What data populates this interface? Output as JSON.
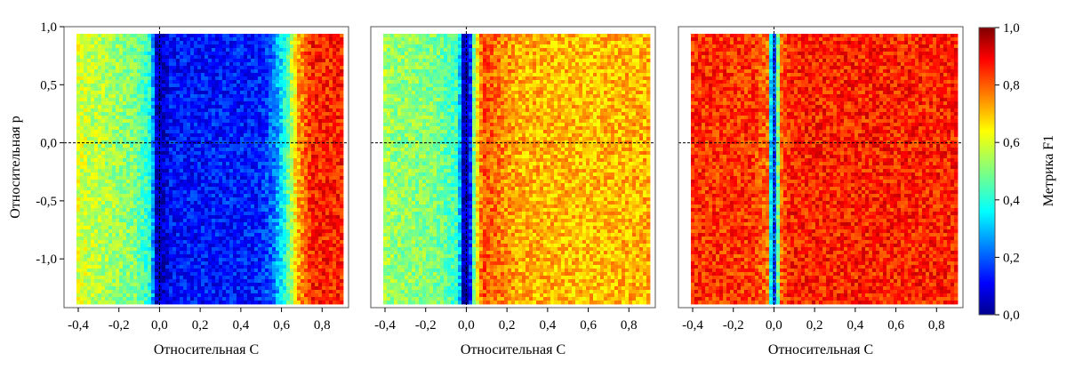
{
  "chart_data": {
    "type": "heatmap",
    "panels": [
      {
        "name": "panel-1",
        "xlabel": "Относительная C",
        "ylabel": "Относительная p",
        "xlim": [
          -0.47,
          0.93
        ],
        "ylim": [
          -1.42,
          1.0
        ],
        "xticks": [
          -0.4,
          -0.2,
          0.0,
          0.2,
          0.4,
          0.6,
          0.8
        ],
        "xtick_labels": [
          "-0,4",
          "-0,2",
          "0,0",
          "0,2",
          "0,4",
          "0,6",
          "0,8"
        ],
        "yticks": [
          1.0,
          0.5,
          0.0,
          -0.5,
          -1.0
        ],
        "ytick_labels": [
          "1,0",
          "0,5",
          "0,0",
          "-0,5",
          "-1,0"
        ],
        "x_profile": [
          [
            -0.47,
            0.62
          ],
          [
            -0.3,
            0.56
          ],
          [
            -0.12,
            0.5
          ],
          [
            -0.04,
            0.38
          ],
          [
            -0.02,
            0.05
          ],
          [
            0.02,
            0.05
          ],
          [
            0.05,
            0.12
          ],
          [
            0.5,
            0.14
          ],
          [
            0.56,
            0.22
          ],
          [
            0.62,
            0.4
          ],
          [
            0.68,
            0.72
          ],
          [
            0.75,
            0.86
          ],
          [
            0.93,
            0.86
          ]
        ]
      },
      {
        "name": "panel-2",
        "xlabel": "Относительная C",
        "ylabel": "",
        "xlim": [
          -0.47,
          0.93
        ],
        "ylim": [
          -1.42,
          1.0
        ],
        "xticks": [
          -0.4,
          -0.2,
          0.0,
          0.2,
          0.4,
          0.6,
          0.8
        ],
        "xtick_labels": [
          "-0,4",
          "-0,2",
          "0,0",
          "0,2",
          "0,4",
          "0,6",
          "0,8"
        ],
        "yticks": [],
        "ytick_labels": [],
        "x_profile": [
          [
            -0.47,
            0.58
          ],
          [
            -0.35,
            0.52
          ],
          [
            -0.15,
            0.5
          ],
          [
            -0.04,
            0.42
          ],
          [
            -0.015,
            0.05
          ],
          [
            0.015,
            0.05
          ],
          [
            0.04,
            0.55
          ],
          [
            0.08,
            0.82
          ],
          [
            0.25,
            0.72
          ],
          [
            0.6,
            0.7
          ],
          [
            0.93,
            0.72
          ]
        ]
      },
      {
        "name": "panel-3",
        "xlabel": "Относительная C",
        "ylabel": "",
        "xlim": [
          -0.47,
          0.93
        ],
        "ylim": [
          -1.42,
          1.0
        ],
        "xticks": [
          -0.4,
          -0.2,
          0.0,
          0.2,
          0.4,
          0.6,
          0.8
        ],
        "xtick_labels": [
          "-0,4",
          "-0,2",
          "0,0",
          "0,2",
          "0,4",
          "0,6",
          "0,8"
        ],
        "yticks": [],
        "ytick_labels": [],
        "x_profile": [
          [
            -0.47,
            0.85
          ],
          [
            -0.1,
            0.84
          ],
          [
            -0.03,
            0.78
          ],
          [
            -0.01,
            0.2
          ],
          [
            0.01,
            0.2
          ],
          [
            0.03,
            0.78
          ],
          [
            0.08,
            0.86
          ],
          [
            0.93,
            0.86
          ]
        ]
      }
    ],
    "colorbar": {
      "label": "Метрика F1",
      "range": [
        0.0,
        1.0
      ],
      "ticks": [
        1.0,
        0.8,
        0.6,
        0.4,
        0.2,
        0.0
      ],
      "tick_labels": [
        "1,0",
        "0,8",
        "0,6",
        "0,4",
        "0,2",
        "0,0"
      ],
      "colormap": "jet"
    },
    "reference_lines": {
      "x": 0.0,
      "y": 0.0,
      "style": "dashed"
    }
  }
}
